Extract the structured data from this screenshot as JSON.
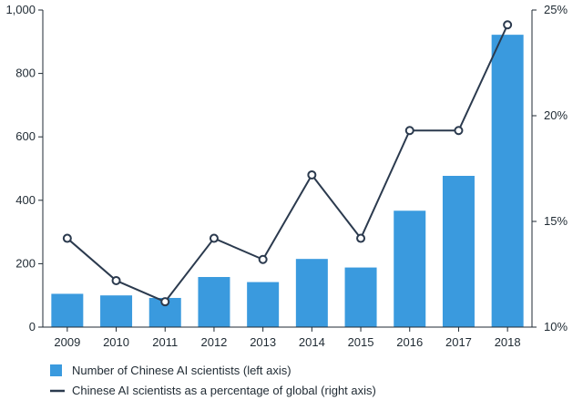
{
  "chart_data": {
    "type": "bar",
    "categories": [
      "2009",
      "2010",
      "2011",
      "2012",
      "2013",
      "2014",
      "2015",
      "2016",
      "2017",
      "2018"
    ],
    "series": [
      {
        "name": "Number of Chinese AI scientists (left axis)",
        "type": "bar",
        "axis": "left",
        "color": "#3a9ade",
        "values": [
          105,
          100,
          92,
          158,
          142,
          215,
          188,
          367,
          477,
          922
        ]
      },
      {
        "name": "Chinese AI scientists as a percentage of global (right axis)",
        "type": "line",
        "axis": "right",
        "color": "#2b3a4e",
        "values": [
          14.2,
          12.2,
          11.2,
          14.2,
          13.2,
          17.2,
          14.2,
          19.3,
          19.3,
          24.3
        ]
      }
    ],
    "left_axis": {
      "ylim": [
        0,
        1000
      ],
      "ticks": [
        0,
        200,
        400,
        600,
        800,
        1000
      ],
      "tick_labels": [
        "0",
        "200",
        "400",
        "600",
        "800",
        "1,000"
      ]
    },
    "right_axis": {
      "ylim": [
        10,
        25
      ],
      "ticks": [
        10,
        15,
        20,
        25
      ],
      "tick_labels": [
        "10%",
        "15%",
        "20%",
        "25%"
      ]
    },
    "legend_position": "bottom-left",
    "grid": false
  }
}
